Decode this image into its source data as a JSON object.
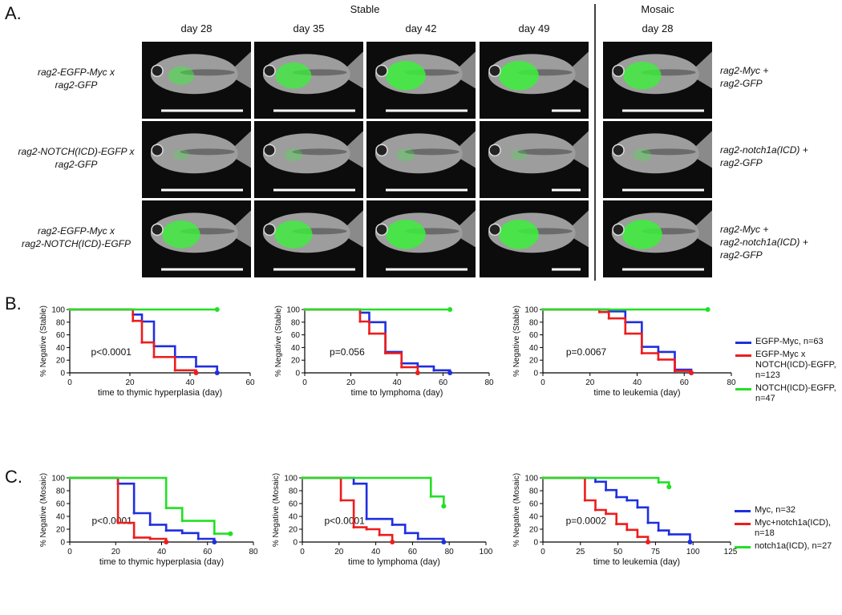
{
  "panel_a": {
    "label": "A.",
    "stable_header": "Stable",
    "mosaic_header": "Mosaic",
    "columns": [
      "day 28",
      "day 35",
      "day 42",
      "day 49"
    ],
    "mosaic_column": "day 28",
    "rows": [
      "rag2-EGFP-Myc x\nrag2-GFP",
      "rag2-NOTCH(ICD)-EGFP x\nrag2-GFP",
      "rag2-EGFP-Myc x\nrag2-NOTCH(ICD)-EGFP"
    ],
    "mosaic_rows": [
      "rag2-Myc +\nrag2-GFP",
      "rag2-notch1a(ICD) +\nrag2-GFP",
      "rag2-Myc +\nrag2-notch1a(ICD) +\nrag2-GFP"
    ]
  },
  "panel_b_label": "B.",
  "panel_c_label": "C.",
  "chart_data": [
    {
      "type": "step",
      "ylabel": "% Negative (Stable)",
      "xlabel": "time to thymic hyperplasia (day)",
      "annotation": "p<0.0001",
      "xlim": [
        0,
        60
      ],
      "xticks": [
        0,
        20,
        40,
        60
      ],
      "ylim": [
        0,
        100
      ],
      "yticks": [
        0,
        20,
        40,
        60,
        80,
        100
      ],
      "series": [
        {
          "color": "#1f2ee0",
          "x": [
            0,
            21,
            24,
            28,
            35,
            42,
            49
          ],
          "values": [
            100,
            92,
            81,
            42,
            25,
            10,
            0
          ]
        },
        {
          "color": "#ee1c1c",
          "x": [
            0,
            21,
            24,
            28,
            35,
            42
          ],
          "values": [
            100,
            82,
            48,
            25,
            4,
            0
          ]
        },
        {
          "color": "#22e022",
          "x": [
            0,
            49
          ],
          "values": [
            100,
            100
          ]
        }
      ]
    },
    {
      "type": "step",
      "ylabel": "% Negative (Stable)",
      "xlabel": "time to lymphoma (day)",
      "annotation": "p=0.056",
      "xlim": [
        0,
        80
      ],
      "xticks": [
        0,
        20,
        40,
        60,
        80
      ],
      "ylim": [
        0,
        100
      ],
      "yticks": [
        0,
        20,
        40,
        60,
        80,
        100
      ],
      "series": [
        {
          "color": "#1f2ee0",
          "x": [
            0,
            24,
            28,
            35,
            42,
            49,
            56,
            63
          ],
          "values": [
            100,
            95,
            80,
            33,
            15,
            10,
            4,
            0
          ]
        },
        {
          "color": "#ee1c1c",
          "x": [
            0,
            24,
            28,
            35,
            42,
            49
          ],
          "values": [
            100,
            81,
            62,
            31,
            9,
            0
          ]
        },
        {
          "color": "#22e022",
          "x": [
            0,
            63
          ],
          "values": [
            100,
            100
          ]
        }
      ]
    },
    {
      "type": "step",
      "ylabel": "% Negative (Stable)",
      "xlabel": "time to leukemia (day)",
      "annotation": "p=0.0067",
      "xlim": [
        0,
        80
      ],
      "xticks": [
        0,
        20,
        40,
        60,
        80
      ],
      "ylim": [
        0,
        100
      ],
      "yticks": [
        0,
        20,
        40,
        60,
        80,
        100
      ],
      "legend": "right",
      "series": [
        {
          "name": "EGFP-Myc, n=63",
          "color": "#1f2ee0",
          "x": [
            0,
            28,
            35,
            42,
            49,
            56,
            63
          ],
          "values": [
            100,
            97,
            80,
            41,
            33,
            5,
            0
          ]
        },
        {
          "name": "EGFP-Myc x\nNOTCH(ICD)-EGFP, n=123",
          "color": "#ee1c1c",
          "x": [
            0,
            24,
            28,
            35,
            42,
            49,
            56,
            63
          ],
          "values": [
            100,
            96,
            86,
            62,
            31,
            21,
            3,
            0
          ]
        },
        {
          "name": "NOTCH(ICD)-EGFP, n=47",
          "color": "#22e022",
          "x": [
            0,
            70
          ],
          "values": [
            100,
            100
          ]
        }
      ]
    },
    {
      "type": "step",
      "ylabel": "% Negative (Mosaic)",
      "xlabel": "time to thymic hyperplasia (day)",
      "annotation": "p<0.0001",
      "xlim": [
        0,
        80
      ],
      "xticks": [
        0,
        20,
        40,
        60,
        80
      ],
      "ylim": [
        0,
        100
      ],
      "yticks": [
        0,
        20,
        40,
        60,
        80,
        100
      ],
      "series": [
        {
          "color": "#1f2ee0",
          "x": [
            0,
            21,
            28,
            35,
            42,
            49,
            56,
            63
          ],
          "values": [
            100,
            91,
            45,
            27,
            18,
            14,
            5,
            0
          ]
        },
        {
          "color": "#ee1c1c",
          "x": [
            0,
            21,
            28,
            35,
            42
          ],
          "values": [
            100,
            30,
            7,
            5,
            0
          ]
        },
        {
          "color": "#22e022",
          "x": [
            0,
            42,
            49,
            63,
            70
          ],
          "values": [
            100,
            53,
            33,
            13,
            13
          ]
        }
      ]
    },
    {
      "type": "step",
      "ylabel": "% Negative (Mosaic)",
      "xlabel": "time to lymphoma (day)",
      "annotation": "p<0.0001",
      "xlim": [
        0,
        100
      ],
      "xticks": [
        0,
        20,
        40,
        60,
        80,
        100
      ],
      "ylim": [
        0,
        100
      ],
      "yticks": [
        0,
        20,
        40,
        60,
        80,
        100
      ],
      "series": [
        {
          "color": "#1f2ee0",
          "x": [
            0,
            28,
            35,
            49,
            56,
            63,
            77
          ],
          "values": [
            100,
            91,
            36,
            27,
            14,
            5,
            0
          ]
        },
        {
          "color": "#ee1c1c",
          "x": [
            0,
            21,
            28,
            35,
            42,
            49
          ],
          "values": [
            100,
            65,
            23,
            20,
            11,
            0
          ]
        },
        {
          "color": "#22e022",
          "x": [
            0,
            70,
            77
          ],
          "values": [
            100,
            71,
            56
          ]
        }
      ]
    },
    {
      "type": "step",
      "ylabel": "% Negative (Mosaic)",
      "xlabel": "time to leukemia (day)",
      "annotation": "p=0.0002",
      "xlim": [
        0,
        125
      ],
      "xticks": [
        0,
        25,
        50,
        75,
        100,
        125
      ],
      "ylim": [
        0,
        100
      ],
      "yticks": [
        0,
        20,
        40,
        60,
        80,
        100
      ],
      "legend": "right",
      "series": [
        {
          "name": "Myc, n=32",
          "color": "#1f2ee0",
          "x": [
            0,
            35,
            42,
            49,
            56,
            63,
            70,
            77,
            84,
            98
          ],
          "values": [
            100,
            94,
            81,
            70,
            65,
            54,
            30,
            18,
            12,
            0
          ]
        },
        {
          "name": "Myc+notch1a(ICD), n=18",
          "color": "#ee1c1c",
          "x": [
            0,
            28,
            35,
            42,
            49,
            56,
            63,
            70
          ],
          "values": [
            100,
            65,
            50,
            44,
            28,
            19,
            8,
            0
          ]
        },
        {
          "name": "notch1a(ICD), n=27",
          "color": "#22e022",
          "x": [
            0,
            77,
            84
          ],
          "values": [
            100,
            93,
            86
          ]
        }
      ]
    }
  ]
}
